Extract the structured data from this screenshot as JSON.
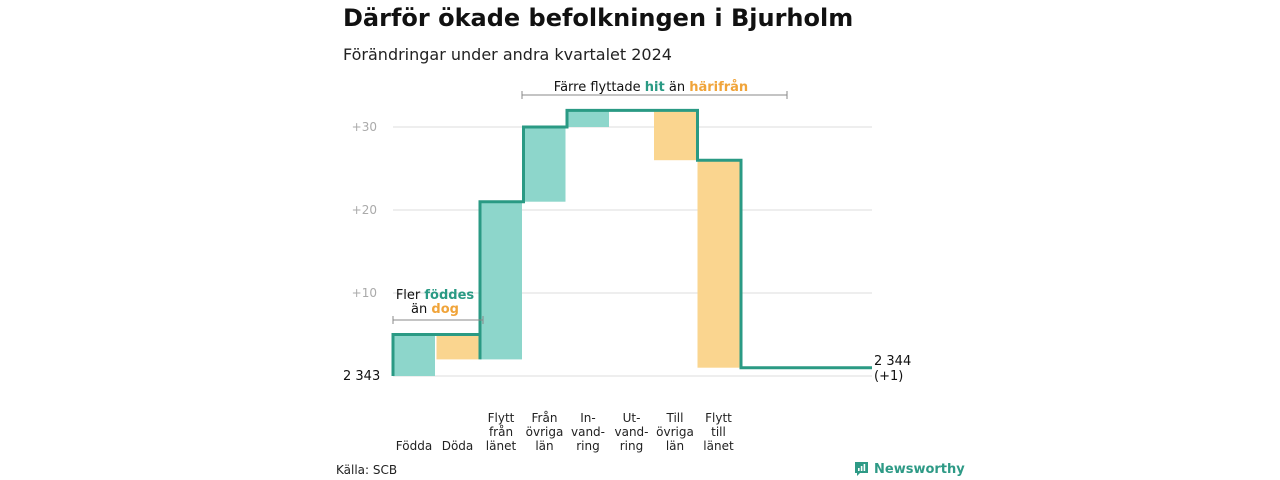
{
  "title": "Därför ökade befolkningen i Bjurholm",
  "subtitle": "Förändringar under andra kvartalet 2024",
  "source": "Källa: SCB",
  "logo_text": "Newsworthy",
  "colors": {
    "increase": "#8dd6cb",
    "decrease": "#fad58f",
    "line": "#2a9a84",
    "grid": "#dedede",
    "tick": "#aaaaaa",
    "accent_teal": "#2a9a84",
    "accent_orange": "#f0a43a"
  },
  "chart_data": {
    "type": "waterfall",
    "start": {
      "label": "2 343",
      "value": 0
    },
    "end": {
      "label": "2 344",
      "sublabel": "(+1)",
      "value": 1
    },
    "categories": [
      [
        "Födda"
      ],
      [
        "Döda"
      ],
      [
        "Flytt",
        "från",
        "länet"
      ],
      [
        "Från",
        "övriga",
        "län"
      ],
      [
        "In-",
        "vand-",
        "ring"
      ],
      [
        "Ut-",
        "vand-",
        "ring"
      ],
      [
        "Till",
        "övriga",
        "län"
      ],
      [
        "Flytt",
        "till",
        "länet"
      ]
    ],
    "changes": [
      5,
      -3,
      19,
      9,
      2,
      0,
      -6,
      -25
    ],
    "yticks": [
      {
        "value": 10,
        "label": "+10"
      },
      {
        "value": 20,
        "label": "+20"
      },
      {
        "value": 30,
        "label": "+30"
      }
    ],
    "ylim": [
      0,
      32
    ],
    "annotations": [
      {
        "pre": "Fler ",
        "a": "föddes",
        "line2_pre": "än ",
        "b": "dog"
      },
      {
        "pre": "Färre flyttade ",
        "a": "hit",
        "mid": " än ",
        "b": "härifrån"
      }
    ]
  }
}
